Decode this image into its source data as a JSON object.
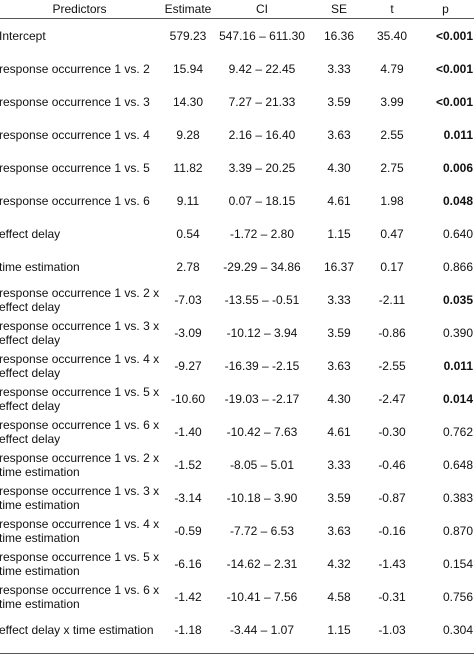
{
  "table": {
    "header": [
      "Predictors",
      "Estimate",
      "CI",
      "SE",
      "t",
      "p"
    ],
    "rows": [
      {
        "predictor": "Intercept",
        "estimate": "579.23",
        "ci": "547.16 – 611.30",
        "se": "16.36",
        "t": "35.40",
        "p": "<0.001",
        "p_bold": true
      },
      {
        "predictor": "response occurrence 1 vs. 2",
        "estimate": "15.94",
        "ci": "9.42 – 22.45",
        "se": "3.33",
        "t": "4.79",
        "p": "<0.001",
        "p_bold": true
      },
      {
        "predictor": "response occurrence 1 vs. 3",
        "estimate": "14.30",
        "ci": "7.27 – 21.33",
        "se": "3.59",
        "t": "3.99",
        "p": "<0.001",
        "p_bold": true
      },
      {
        "predictor": "response occurrence 1 vs. 4",
        "estimate": "9.28",
        "ci": "2.16 – 16.40",
        "se": "3.63",
        "t": "2.55",
        "p": "0.011",
        "p_bold": true
      },
      {
        "predictor": "response occurrence 1 vs. 5",
        "estimate": "11.82",
        "ci": "3.39 – 20.25",
        "se": "4.30",
        "t": "2.75",
        "p": "0.006",
        "p_bold": true
      },
      {
        "predictor": "response occurrence 1 vs. 6",
        "estimate": "9.11",
        "ci": "0.07 – 18.15",
        "se": "4.61",
        "t": "1.98",
        "p": "0.048",
        "p_bold": true
      },
      {
        "predictor": "effect delay",
        "estimate": "0.54",
        "ci": "-1.72 – 2.80",
        "se": "1.15",
        "t": "0.47",
        "p": "0.640",
        "p_bold": false
      },
      {
        "predictor": "time estimation",
        "estimate": "2.78",
        "ci": "-29.29 – 34.86",
        "se": "16.37",
        "t": "0.17",
        "p": "0.866",
        "p_bold": false
      },
      {
        "predictor": "response occurrence 1 vs. 2 x effect delay",
        "estimate": "-7.03",
        "ci": "-13.55 – -0.51",
        "se": "3.33",
        "t": "-2.11",
        "p": "0.035",
        "p_bold": true
      },
      {
        "predictor": "response occurrence 1 vs. 3 x effect delay",
        "estimate": "-3.09",
        "ci": "-10.12 – 3.94",
        "se": "3.59",
        "t": "-0.86",
        "p": "0.390",
        "p_bold": false
      },
      {
        "predictor": "response occurrence 1 vs. 4 x effect delay",
        "estimate": "-9.27",
        "ci": "-16.39 – -2.15",
        "se": "3.63",
        "t": "-2.55",
        "p": "0.011",
        "p_bold": true
      },
      {
        "predictor": "response occurrence 1 vs. 5 x effect delay",
        "estimate": "-10.60",
        "ci": "-19.03 – -2.17",
        "se": "4.30",
        "t": "-2.47",
        "p": "0.014",
        "p_bold": true
      },
      {
        "predictor": "response occurrence 1 vs. 6 x effect delay",
        "estimate": "-1.40",
        "ci": "-10.42 – 7.63",
        "se": "4.61",
        "t": "-0.30",
        "p": "0.762",
        "p_bold": false
      },
      {
        "predictor": "response occurrence 1 vs. 2 x time estimation",
        "estimate": "-1.52",
        "ci": "-8.05 – 5.01",
        "se": "3.33",
        "t": "-0.46",
        "p": "0.648",
        "p_bold": false
      },
      {
        "predictor": "response occurrence 1 vs. 3 x time estimation",
        "estimate": "-3.14",
        "ci": "-10.18 – 3.90",
        "se": "3.59",
        "t": "-0.87",
        "p": "0.383",
        "p_bold": false
      },
      {
        "predictor": "response occurrence 1 vs. 4 x time estimation",
        "estimate": "-0.59",
        "ci": "-7.72 – 6.53",
        "se": "3.63",
        "t": "-0.16",
        "p": "0.870",
        "p_bold": false
      },
      {
        "predictor": "response occurrence 1 vs. 5 x time estimation",
        "estimate": "-6.16",
        "ci": "-14.62 – 2.31",
        "se": "4.32",
        "t": "-1.43",
        "p": "0.154",
        "p_bold": false
      },
      {
        "predictor": "response occurrence 1 vs. 6 x time estimation",
        "estimate": "-1.42",
        "ci": "-10.41 – 7.56",
        "se": "4.58",
        "t": "-0.31",
        "p": "0.756",
        "p_bold": false
      },
      {
        "predictor": "effect delay x time estimation",
        "estimate": "-1.18",
        "ci": "-3.44 – 1.07",
        "se": "1.15",
        "t": "-1.03",
        "p": "0.304",
        "p_bold": false
      }
    ]
  }
}
